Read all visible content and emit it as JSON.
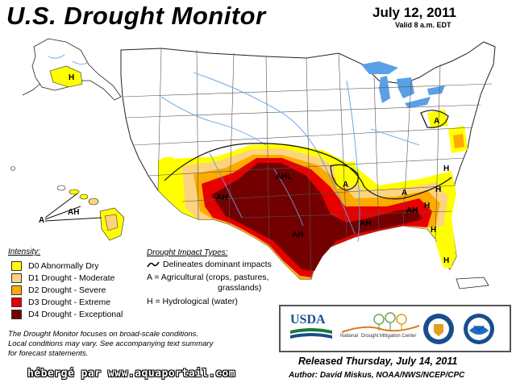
{
  "header": {
    "title": "U.S. Drought Monitor",
    "date": "July 12, 2011",
    "valid": "Valid 8 a.m. EDT"
  },
  "map": {
    "labels": {
      "alaska_h": "H",
      "hawaii_ah": "AH",
      "hawaii_a": "A",
      "ne_a": "A",
      "ahl": "AHL",
      "ah_nm": "AH",
      "ah_tx": "AH",
      "a_mo": "A",
      "ah_ms": "AH",
      "h_ga": "H",
      "h_sc": "H",
      "h_nc": "H",
      "h_fl1": "H",
      "h_fl2": "H",
      "a_se": "A",
      "ah_ga": "AH"
    },
    "colors": {
      "D0": "#ffff00",
      "D1": "#fcd37f",
      "D2": "#ffaa00",
      "D3": "#e60000",
      "D4": "#730000",
      "water": "#5aa0e6",
      "border": "#222222"
    }
  },
  "legend": {
    "title": "Intensity:",
    "items": [
      {
        "color": "#ffff00",
        "label": "D0 Abnormally Dry"
      },
      {
        "color": "#fcd37f",
        "label": "D1 Drought - Moderate"
      },
      {
        "color": "#ffaa00",
        "label": "D2 Drought - Severe"
      },
      {
        "color": "#e60000",
        "label": "D3 Drought - Extreme"
      },
      {
        "color": "#730000",
        "label": "D4 Drought - Exceptional"
      }
    ]
  },
  "impacts": {
    "title": "Drought Impact Types:",
    "delineates": "Delineates dominant impacts",
    "agricultural_1": "A = Agricultural (crops, pastures,",
    "agricultural_2": "grasslands)",
    "hydrological": "H = Hydrological (water)"
  },
  "note": {
    "line1": "The Drought Monitor focuses on broad-scale conditions.",
    "line2": "Local conditions may vary. See accompanying text summary",
    "line3": "for forecast statements."
  },
  "logos": {
    "usda": "USDA",
    "ndmc_1": "National",
    "ndmc_2": "Drought Mitigation Center"
  },
  "footer": {
    "released": "Released Thursday, July 14, 2011",
    "author": "Author: David Miskus, NOAA/NWS/NCEP/CPC",
    "hosted": "hébergé par www.aquaportail.com"
  }
}
